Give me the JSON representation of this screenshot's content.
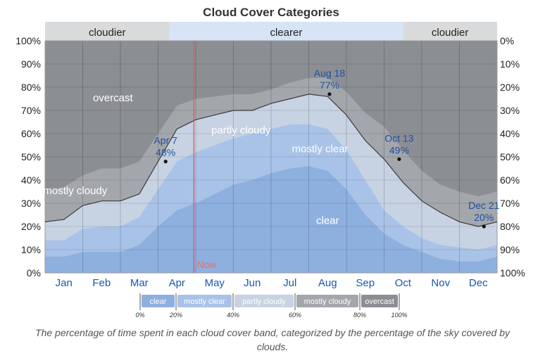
{
  "chart_data": {
    "type": "area",
    "title": "Cloud Cover Categories",
    "x_labels": [
      "Jan",
      "Feb",
      "Mar",
      "Apr",
      "May",
      "Jun",
      "Jul",
      "Aug",
      "Sep",
      "Oct",
      "Nov",
      "Dec"
    ],
    "y_left_ticks": [
      "0%",
      "10%",
      "20%",
      "30%",
      "40%",
      "50%",
      "60%",
      "70%",
      "80%",
      "90%",
      "100%"
    ],
    "y_right_ticks": [
      "100%",
      "90%",
      "80%",
      "70%",
      "60%",
      "50%",
      "40%",
      "30%",
      "20%",
      "10%",
      "0%"
    ],
    "ylim": [
      0,
      100
    ],
    "top_bands": [
      {
        "label": "cloudier",
        "from_month": 0,
        "to_month": 3.3
      },
      {
        "label": "clearer",
        "from_month": 3.3,
        "to_month": 9.5
      },
      {
        "label": "cloudier",
        "from_month": 9.5,
        "to_month": 12
      }
    ],
    "x": [
      0,
      0.5,
      1,
      1.5,
      2,
      2.5,
      3,
      3.5,
      4,
      4.5,
      5,
      5.5,
      6,
      6.5,
      7,
      7.5,
      8,
      8.5,
      9,
      9.5,
      10,
      10.5,
      11,
      11.5,
      12
    ],
    "series": [
      {
        "name": "clear",
        "color": "#8eb0df",
        "values": [
          7,
          7,
          9,
          9,
          9,
          12,
          20,
          27,
          30,
          34,
          38,
          40,
          43,
          45,
          46,
          44,
          36,
          25,
          17,
          12,
          9,
          6,
          5,
          5,
          7
        ]
      },
      {
        "name": "mostly clear",
        "color": "#a9c3e8",
        "values": [
          14,
          14,
          19,
          20,
          20,
          24,
          36,
          48,
          52,
          55,
          58,
          60,
          62,
          64,
          64,
          62,
          53,
          40,
          27,
          20,
          15,
          12,
          11,
          10,
          12
        ]
      },
      {
        "name": "partly cloudy",
        "color": "#c7d3e3",
        "values": [
          22,
          23,
          29,
          31,
          31,
          34,
          48,
          62,
          66,
          68,
          70,
          70,
          73,
          75,
          77,
          76,
          68,
          57,
          49,
          39,
          31,
          26,
          22,
          20,
          22
        ]
      },
      {
        "name": "mostly cloudy",
        "color": "#a3a6ab",
        "values": [
          35,
          37,
          42,
          45,
          45,
          48,
          60,
          72,
          75,
          76,
          77,
          77,
          79,
          82,
          84,
          84,
          78,
          69,
          63,
          53,
          44,
          38,
          35,
          33,
          35
        ]
      },
      {
        "name": "overcast",
        "color": "#8b8e92",
        "values": [
          100,
          100,
          100,
          100,
          100,
          100,
          100,
          100,
          100,
          100,
          100,
          100,
          100,
          100,
          100,
          100,
          100,
          100,
          100,
          100,
          100,
          100,
          100,
          100,
          100
        ]
      }
    ],
    "region_labels": [
      {
        "text": "overcast",
        "month": 1.8,
        "value": 74
      },
      {
        "text": "mostly cloudy",
        "month": 0.8,
        "value": 34
      },
      {
        "text": "partly cloudy",
        "month": 5.2,
        "value": 60
      },
      {
        "text": "mostly clear",
        "month": 7.3,
        "value": 52
      },
      {
        "text": "clear",
        "month": 7.5,
        "value": 21
      }
    ],
    "annotations": [
      {
        "date": "Apr 7",
        "value_label": "48%",
        "month": 3.2,
        "value": 48,
        "text_above": true
      },
      {
        "date": "Aug 18",
        "value_label": "77%",
        "month": 7.55,
        "value": 77,
        "text_above": true
      },
      {
        "date": "Oct 13",
        "value_label": "49%",
        "month": 9.4,
        "value": 49,
        "text_above": true
      },
      {
        "date": "Dec 21",
        "value_label": "20%",
        "month": 11.65,
        "value": 20,
        "text_above": true
      }
    ],
    "now": {
      "label": "Now",
      "month": 3.95
    },
    "legend": {
      "items": [
        {
          "label": "clear",
          "color": "#8eb0df"
        },
        {
          "label": "mostly clear",
          "color": "#a9c3e8"
        },
        {
          "label": "partly cloudy",
          "color": "#c7d3e3"
        },
        {
          "label": "mostly cloudy",
          "color": "#a3a6ab"
        },
        {
          "label": "overcast",
          "color": "#8b8e92"
        }
      ],
      "ticks": [
        "0%",
        "20%",
        "40%",
        "60%",
        "80%",
        "100%"
      ]
    }
  },
  "caption": "The percentage of time spent in each cloud cover band, categorized by the percentage of the sky covered by clouds."
}
